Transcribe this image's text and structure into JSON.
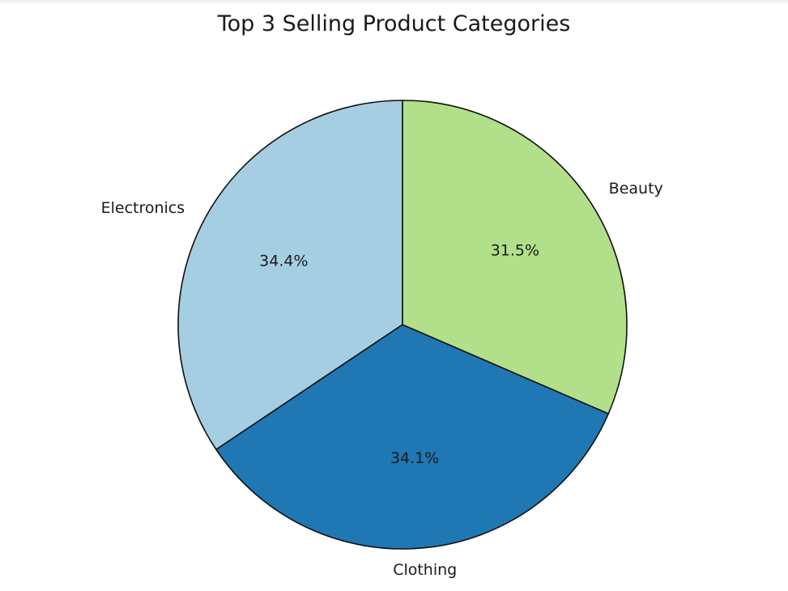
{
  "chart_data": {
    "type": "pie",
    "title": "Top 3 Selling Product Categories",
    "categories": [
      "Electronics",
      "Clothing",
      "Beauty"
    ],
    "values": [
      34.4,
      34.1,
      31.5
    ],
    "percent_labels": [
      "34.4%",
      "34.1%",
      "31.5%"
    ],
    "colors": [
      "#a6cee3",
      "#1f78b4",
      "#b2df8a"
    ],
    "start_angle_deg": 90,
    "direction": "counterclockwise",
    "edge_color": "#111111"
  }
}
